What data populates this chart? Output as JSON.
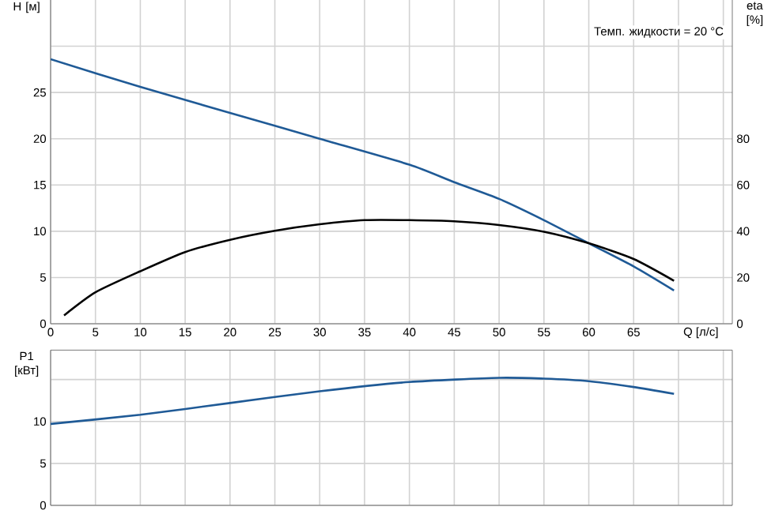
{
  "chart_data": [
    {
      "type": "line",
      "ylabel": "H [м]",
      "y2label": "eta [%]",
      "xlabel": "Q [л/с]",
      "annotations": [
        "Темп. жидкости = 20 °C"
      ],
      "xlim": [
        0,
        76
      ],
      "xticks": [
        0,
        5,
        10,
        15,
        20,
        25,
        30,
        35,
        40,
        45,
        50,
        55,
        60,
        65,
        {
          "value": 70,
          "label": null
        },
        {
          "value": 75,
          "label": null
        }
      ],
      "ylim": [
        0,
        35
      ],
      "yticks": [
        0,
        5,
        10,
        15,
        20,
        25,
        {
          "value": 30,
          "label": null
        }
      ],
      "y2lim": [
        0,
        140
      ],
      "y2ticks": [
        0,
        20,
        40,
        60,
        80
      ],
      "grid": true,
      "series": [
        {
          "color": "#1f5a96",
          "axis": "y",
          "x": [
            0,
            10,
            20,
            30,
            40,
            45,
            50,
            55,
            60,
            65,
            69.5
          ],
          "values": [
            28.6,
            25.6,
            22.8,
            20.0,
            17.2,
            15.3,
            13.5,
            11.2,
            8.7,
            6.2,
            3.6
          ]
        },
        {
          "color": "#000000",
          "axis": "y2",
          "x": [
            1.5,
            5,
            10,
            15,
            20,
            25,
            30,
            35,
            40,
            45,
            50,
            55,
            60,
            65,
            69.5
          ],
          "values": [
            3.6,
            13.6,
            22.7,
            31,
            36.3,
            40.2,
            43,
            44.8,
            44.8,
            44.3,
            42.7,
            39.8,
            34.8,
            28,
            18.6
          ]
        }
      ]
    },
    {
      "type": "line",
      "ylabel": "P1 [кВт]",
      "xlim": [
        0,
        76
      ],
      "xticks": [
        0,
        5,
        10,
        15,
        20,
        25,
        30,
        35,
        40,
        45,
        50,
        55,
        60,
        65,
        70,
        75
      ],
      "ylim": [
        0,
        18.5
      ],
      "yticks": [
        0,
        5,
        10,
        {
          "value": 15,
          "label": null
        }
      ],
      "grid": true,
      "tick_labels": "y",
      "series": [
        {
          "color": "#1f5a96",
          "axis": "y",
          "x": [
            0,
            10,
            20,
            30,
            40,
            50,
            55,
            60,
            65,
            69.5
          ],
          "values": [
            9.7,
            10.8,
            12.2,
            13.6,
            14.7,
            15.2,
            15.1,
            14.8,
            14.1,
            13.3
          ]
        }
      ]
    }
  ]
}
